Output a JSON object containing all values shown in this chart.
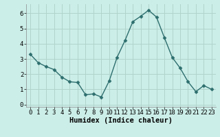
{
  "x": [
    0,
    1,
    2,
    3,
    4,
    5,
    6,
    7,
    8,
    9,
    10,
    11,
    12,
    13,
    14,
    15,
    16,
    17,
    18,
    19,
    20,
    21,
    22,
    23
  ],
  "y": [
    3.3,
    2.75,
    2.5,
    2.3,
    1.8,
    1.5,
    1.45,
    0.65,
    0.7,
    0.5,
    1.55,
    3.1,
    4.2,
    5.45,
    5.8,
    6.2,
    5.75,
    4.4,
    3.1,
    2.4,
    1.5,
    0.85,
    1.25,
    1.0
  ],
  "line_color": "#2d6e6e",
  "marker": "D",
  "marker_size": 2.5,
  "bg_color": "#cceee8",
  "grid_color": "#b0d4cc",
  "xlabel": "Humidex (Indice chaleur)",
  "xlim": [
    -0.5,
    23.5
  ],
  "ylim": [
    -0.15,
    6.6
  ],
  "xticks": [
    0,
    1,
    2,
    3,
    4,
    5,
    6,
    7,
    8,
    9,
    10,
    11,
    12,
    13,
    14,
    15,
    16,
    17,
    18,
    19,
    20,
    21,
    22,
    23
  ],
  "yticks": [
    0,
    1,
    2,
    3,
    4,
    5,
    6
  ],
  "xlabel_fontsize": 7.5,
  "tick_fontsize": 6.5,
  "linewidth": 1.0
}
